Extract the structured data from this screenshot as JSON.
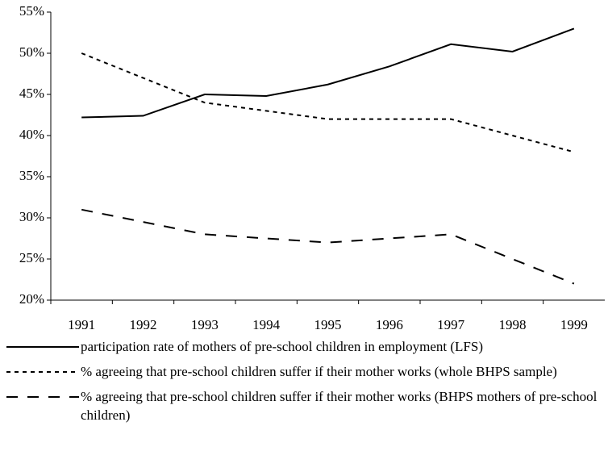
{
  "chart_data": {
    "type": "line",
    "categories": [
      "1991",
      "1992",
      "1993",
      "1994",
      "1995",
      "1996",
      "1997",
      "1998",
      "1999"
    ],
    "series": [
      {
        "name": "participation rate of mothers of pre-school children in employment (LFS)",
        "color": "#000000",
        "line_style": "solid",
        "values": [
          42.2,
          42.4,
          45.0,
          44.8,
          46.2,
          48.4,
          51.1,
          50.2,
          53.0
        ]
      },
      {
        "name": "% agreeing that pre-school children suffer if their mother works (whole BHPS sample)",
        "color": "#000000",
        "line_style": "dashed",
        "values": [
          50,
          47,
          44,
          43,
          42,
          42,
          42,
          40,
          38
        ]
      },
      {
        "name": "% agreeing that pre-school children suffer if their mother works (BHPS mothers of pre-school children)",
        "color": "#000000",
        "line_style": "long-dashed",
        "values": [
          31,
          29.5,
          28,
          27.5,
          27,
          27.5,
          28,
          25,
          22
        ]
      }
    ],
    "ylim": [
      20,
      55
    ],
    "yticks": [
      {
        "value": 20,
        "label": "20%"
      },
      {
        "value": 25,
        "label": "25%"
      },
      {
        "value": 30,
        "label": "30%"
      },
      {
        "value": 35,
        "label": "35%"
      },
      {
        "value": 40,
        "label": "40%"
      },
      {
        "value": 45,
        "label": "45%"
      },
      {
        "value": 50,
        "label": "50%"
      },
      {
        "value": 55,
        "label": "55%"
      }
    ],
    "grid": false
  }
}
